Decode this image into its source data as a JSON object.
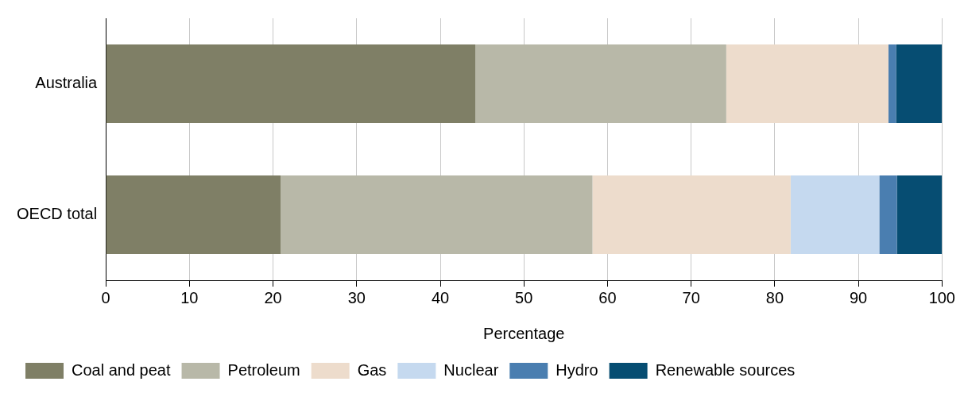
{
  "chart_data": {
    "type": "bar",
    "orientation": "horizontal",
    "stacked": true,
    "xlabel": "Percentage",
    "categories": [
      "Australia",
      "OECD total"
    ],
    "series": [
      {
        "name": "Coal and peat",
        "color": "#7f7f66",
        "values": [
          44.2,
          20.9
        ]
      },
      {
        "name": "Petroleum",
        "color": "#b8b8a8",
        "values": [
          30.0,
          37.3
        ]
      },
      {
        "name": "Gas",
        "color": "#eddccc",
        "values": [
          19.4,
          23.7
        ]
      },
      {
        "name": "Nuclear",
        "color": "#c5d9ef",
        "values": [
          0,
          10.6
        ]
      },
      {
        "name": "Hydro",
        "color": "#4a7eb0",
        "values": [
          0.9,
          2.1
        ]
      },
      {
        "name": "Renewable sources",
        "color": "#064d72",
        "values": [
          5.5,
          5.4
        ]
      }
    ],
    "xlim": [
      0,
      100
    ],
    "xticks": [
      0,
      10,
      20,
      30,
      40,
      50,
      60,
      70,
      80,
      90,
      100
    ],
    "grid": "x",
    "legend": "bottom"
  }
}
